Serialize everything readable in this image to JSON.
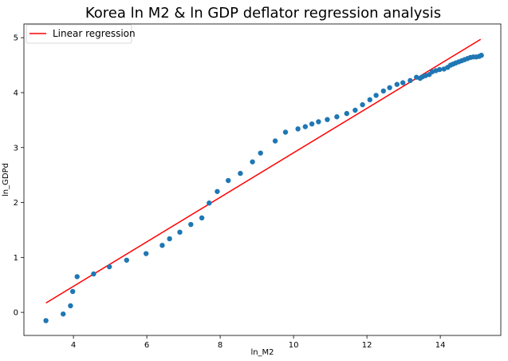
{
  "chart_data": {
    "type": "scatter",
    "title": "Korea ln M2 & ln GDP deflator regression analysis",
    "xlabel": "ln_M2",
    "ylabel": "ln_GDPd",
    "xlim": [
      2.65,
      15.65
    ],
    "ylim": [
      -0.42,
      5.25
    ],
    "xticks": [
      4,
      6,
      8,
      10,
      12,
      14
    ],
    "yticks": [
      0,
      1,
      2,
      3,
      4,
      5
    ],
    "grid": false,
    "legend": {
      "position": "top-left",
      "entries": [
        "Linear regression"
      ]
    },
    "colors": {
      "points": "#1f77b4",
      "regression": "#ff0000",
      "frame": "#000000"
    },
    "series": [
      {
        "name": "observations",
        "points": [
          [
            3.25,
            -0.15
          ],
          [
            3.72,
            -0.03
          ],
          [
            3.92,
            0.12
          ],
          [
            3.98,
            0.38
          ],
          [
            4.1,
            0.65
          ],
          [
            4.55,
            0.7
          ],
          [
            4.98,
            0.83
          ],
          [
            5.45,
            0.95
          ],
          [
            5.98,
            1.07
          ],
          [
            6.42,
            1.22
          ],
          [
            6.62,
            1.34
          ],
          [
            6.9,
            1.46
          ],
          [
            7.2,
            1.6
          ],
          [
            7.5,
            1.72
          ],
          [
            7.7,
            1.99
          ],
          [
            7.92,
            2.2
          ],
          [
            8.22,
            2.4
          ],
          [
            8.55,
            2.53
          ],
          [
            8.88,
            2.74
          ],
          [
            9.1,
            2.9
          ],
          [
            9.5,
            3.12
          ],
          [
            9.78,
            3.28
          ],
          [
            10.12,
            3.34
          ],
          [
            10.32,
            3.38
          ],
          [
            10.5,
            3.43
          ],
          [
            10.68,
            3.47
          ],
          [
            10.92,
            3.51
          ],
          [
            11.18,
            3.56
          ],
          [
            11.45,
            3.62
          ],
          [
            11.68,
            3.68
          ],
          [
            11.88,
            3.78
          ],
          [
            12.08,
            3.87
          ],
          [
            12.25,
            3.95
          ],
          [
            12.45,
            4.03
          ],
          [
            12.62,
            4.09
          ],
          [
            12.82,
            4.15
          ],
          [
            12.98,
            4.18
          ],
          [
            13.18,
            4.22
          ],
          [
            13.35,
            4.28
          ],
          [
            13.45,
            4.26
          ],
          [
            13.52,
            4.29
          ],
          [
            13.6,
            4.31
          ],
          [
            13.7,
            4.33
          ],
          [
            13.78,
            4.38
          ],
          [
            13.88,
            4.4
          ],
          [
            13.98,
            4.42
          ],
          [
            14.1,
            4.43
          ],
          [
            14.2,
            4.46
          ],
          [
            14.28,
            4.5
          ],
          [
            14.35,
            4.52
          ],
          [
            14.42,
            4.54
          ],
          [
            14.5,
            4.56
          ],
          [
            14.58,
            4.58
          ],
          [
            14.66,
            4.6
          ],
          [
            14.74,
            4.62
          ],
          [
            14.82,
            4.64
          ],
          [
            14.9,
            4.65
          ],
          [
            14.98,
            4.65
          ],
          [
            15.06,
            4.66
          ],
          [
            15.12,
            4.68
          ]
        ]
      },
      {
        "name": "Linear regression",
        "line": [
          [
            3.25,
            0.17
          ],
          [
            15.1,
            4.97
          ]
        ]
      }
    ]
  }
}
